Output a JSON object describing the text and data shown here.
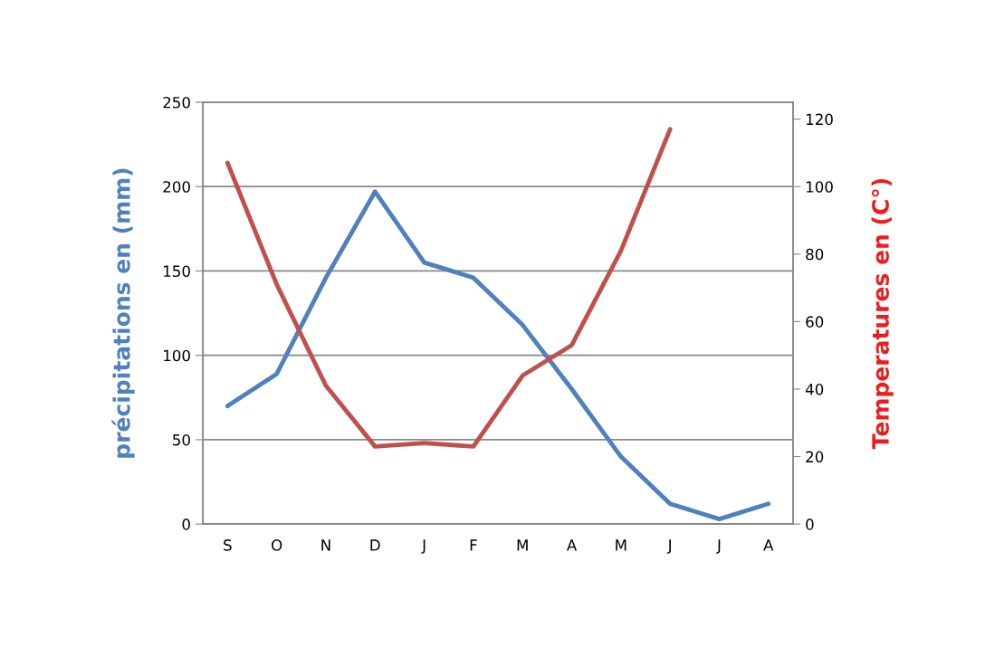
{
  "chart_data": {
    "type": "line",
    "ylabel": "précipitations en (mm)",
    "y2label": "Temperatures en (C°)",
    "categories": [
      "S",
      "O",
      "N",
      "D",
      "J",
      "F",
      "M",
      "A",
      "M",
      "J",
      "J",
      "A"
    ],
    "series": [
      {
        "color": "#4f81bd",
        "values": [
          70,
          89,
          146,
          197,
          155,
          146,
          118,
          80,
          40,
          12,
          3,
          12
        ]
      },
      {
        "color": "#c0504d",
        "axis": "y2",
        "values": [
          107,
          71,
          41,
          23,
          24,
          23,
          44,
          53,
          81,
          117,
          null,
          null
        ]
      }
    ],
    "ylim": [
      0,
      250
    ],
    "yticks": [
      0,
      50,
      100,
      150,
      200,
      250
    ],
    "y2lim": [
      0,
      125
    ],
    "y2ticks": [
      0,
      20,
      40,
      60,
      80,
      100,
      120
    ],
    "grid": "y",
    "marker": "none",
    "line_style": "solid"
  }
}
